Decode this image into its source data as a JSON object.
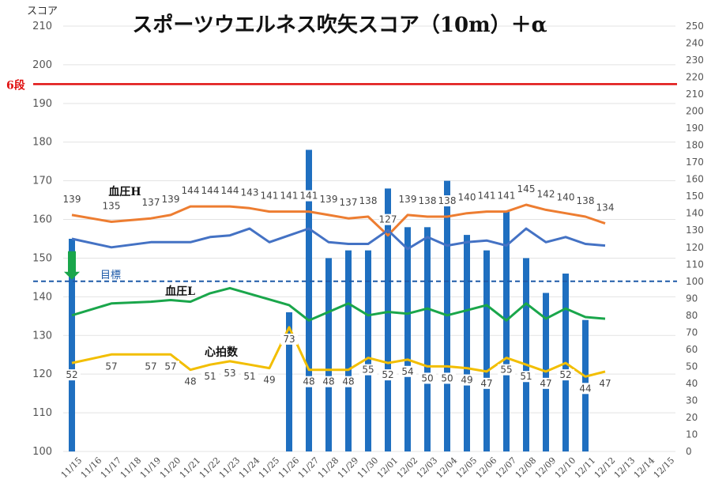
{
  "chart_data": {
    "type": "bar",
    "title": "スポーツウエルネス吹矢スコア（10m）＋α",
    "ylabel_left": "スコア",
    "ylim_left": [
      100,
      210
    ],
    "ylim_right": [
      0,
      250
    ],
    "left_ticks": [
      100,
      110,
      120,
      130,
      140,
      150,
      160,
      170,
      180,
      190,
      200,
      210
    ],
    "right_ticks": [
      0,
      10,
      20,
      30,
      40,
      50,
      60,
      70,
      80,
      90,
      100,
      110,
      120,
      130,
      140,
      150,
      160,
      170,
      180,
      190,
      200,
      210,
      220,
      230,
      240,
      250
    ],
    "categories": [
      "11/15",
      "11/16",
      "11/17",
      "11/18",
      "11/19",
      "11/20",
      "11/21",
      "11/22",
      "11/23",
      "11/24",
      "11/25",
      "11/26",
      "11/27",
      "11/28",
      "11/29",
      "11/30",
      "12/01",
      "12/02",
      "12/03",
      "12/04",
      "12/05",
      "12/06",
      "12/07",
      "12/08",
      "12/09",
      "12/10",
      "12/11",
      "12/12",
      "12/13",
      "12/14",
      "12/15"
    ],
    "grid": true,
    "reference_lines": [
      {
        "label": "6段",
        "value": 195,
        "color": "#e01010"
      },
      {
        "label": "目標",
        "value": 144,
        "color": "#1e5aa8"
      }
    ],
    "series": [
      {
        "name": "",
        "kind": "bar",
        "axis": "left",
        "color": "#1f6fc0",
        "values": [
          155,
          null,
          null,
          null,
          null,
          null,
          null,
          null,
          null,
          null,
          null,
          136,
          178,
          150,
          152,
          152,
          168,
          158,
          158,
          170,
          156,
          152,
          162,
          150,
          141,
          146,
          134,
          null,
          null,
          null,
          null
        ]
      },
      {
        "name": "血圧H",
        "kind": "line",
        "axis": "right",
        "color": "#ed7d31",
        "values": [
          139,
          null,
          135,
          null,
          137,
          139,
          144,
          144,
          144,
          143,
          141,
          141,
          141,
          139,
          137,
          138,
          127,
          139,
          138,
          138,
          140,
          141,
          141,
          145,
          142,
          140,
          138,
          134,
          null,
          null,
          null
        ],
        "labels": [
          "139",
          "",
          "135",
          "",
          "137",
          "139",
          "144",
          "144",
          "144",
          "143",
          "141",
          "141",
          "141",
          "139",
          "137",
          "138",
          "127",
          "139",
          "138",
          "138",
          "140",
          "141",
          "141",
          "145",
          "142",
          "140",
          "138",
          "134",
          "",
          "",
          ""
        ]
      },
      {
        "name": "",
        "kind": "line",
        "axis": "right",
        "color": "#4472c4",
        "values": [
          125,
          null,
          120,
          null,
          123,
          123,
          123,
          126,
          127,
          131,
          123,
          127,
          131,
          123,
          122,
          122,
          130,
          119,
          126,
          121,
          123,
          124,
          121,
          131,
          123,
          126,
          122,
          121,
          null,
          null,
          null
        ]
      },
      {
        "name": "血圧L",
        "kind": "line",
        "axis": "right",
        "color": "#1aa64b",
        "values": [
          80,
          null,
          87,
          null,
          88,
          89,
          88,
          93,
          96,
          null,
          null,
          86,
          77,
          82,
          87,
          80,
          82,
          81,
          84,
          80,
          83,
          86,
          77,
          87,
          78,
          84,
          79,
          78,
          null,
          null,
          null
        ]
      },
      {
        "name": "心拍数",
        "kind": "line",
        "axis": "right",
        "color": "#f2be00",
        "values": [
          52,
          null,
          57,
          null,
          57,
          57,
          48,
          51,
          53,
          51,
          49,
          73,
          48,
          48,
          48,
          55,
          52,
          54,
          50,
          50,
          49,
          47,
          55,
          51,
          47,
          52,
          44,
          47,
          null,
          null,
          null
        ],
        "labels": [
          "52",
          "",
          "57",
          "",
          "57",
          "57",
          "48",
          "51",
          "53",
          "51",
          "49",
          "73",
          "48",
          "48",
          "48",
          "55",
          "52",
          "54",
          "50",
          "50",
          "49",
          "47",
          "55",
          "51",
          "47",
          "52",
          "44",
          "47",
          "",
          "",
          ""
        ]
      }
    ]
  }
}
